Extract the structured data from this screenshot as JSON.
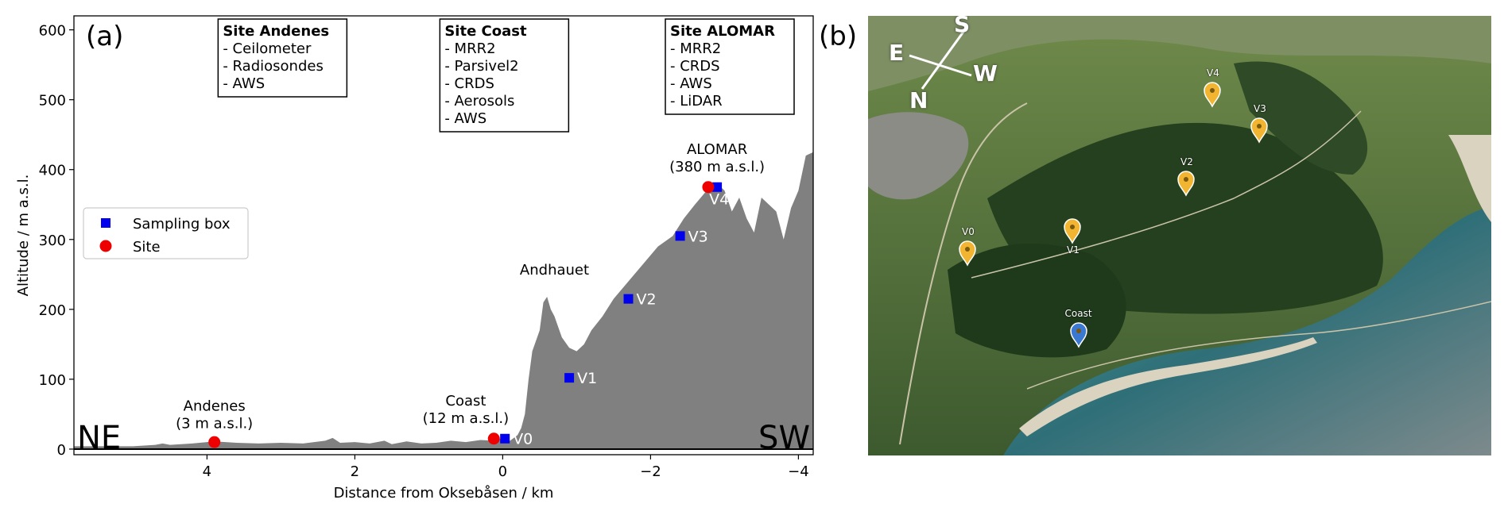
{
  "panel_a_label": "(a)",
  "panel_b_label": "(b)",
  "chart_data": {
    "type": "area",
    "xlabel": "Distance from Oksebåsen / km",
    "ylabel": "Altitude / m a.s.l.",
    "xlim": [
      5.8,
      -4.2
    ],
    "ylim": [
      -8,
      620
    ],
    "xticks": [
      4,
      2,
      0,
      -2,
      -4
    ],
    "xtick_labels": [
      "4",
      "2",
      "0",
      "−2",
      "−4"
    ],
    "yticks": [
      0,
      100,
      200,
      300,
      400,
      500,
      600
    ],
    "ytick_labels": [
      "0",
      "100",
      "200",
      "300",
      "400",
      "500",
      "600"
    ],
    "grid": false,
    "terrain_color": "#808080",
    "terrain_profile": {
      "x": [
        5.8,
        5.0,
        4.7,
        4.6,
        4.5,
        4.2,
        4.0,
        3.9,
        3.6,
        3.3,
        3.0,
        2.7,
        2.4,
        2.3,
        2.2,
        2.0,
        1.8,
        1.6,
        1.5,
        1.3,
        1.1,
        0.9,
        0.7,
        0.5,
        0.3,
        0.1,
        0.0,
        -0.1,
        -0.2,
        -0.25,
        -0.3,
        -0.35,
        -0.4,
        -0.5,
        -0.55,
        -0.6,
        -0.65,
        -0.7,
        -0.8,
        -0.9,
        -1.0,
        -1.1,
        -1.2,
        -1.35,
        -1.5,
        -1.7,
        -1.9,
        -2.1,
        -2.3,
        -2.45,
        -2.6,
        -2.8,
        -2.9,
        -3.0,
        -3.1,
        -3.2,
        -3.3,
        -3.4,
        -3.5,
        -3.6,
        -3.7,
        -3.8,
        -3.9,
        -4.0,
        -4.1,
        -4.2
      ],
      "y": [
        4,
        4,
        6,
        8,
        6,
        8,
        10,
        11,
        9,
        8,
        9,
        8,
        12,
        16,
        9,
        10,
        8,
        12,
        7,
        11,
        8,
        9,
        12,
        10,
        13,
        12,
        16,
        12,
        20,
        30,
        50,
        100,
        140,
        170,
        210,
        218,
        200,
        190,
        160,
        145,
        140,
        150,
        170,
        190,
        215,
        240,
        265,
        290,
        305,
        330,
        350,
        375,
        380,
        370,
        340,
        360,
        330,
        310,
        360,
        350,
        340,
        300,
        345,
        370,
        420,
        425
      ]
    },
    "series": [
      {
        "name": "Sampling box",
        "marker": "square",
        "color": "#0000ee",
        "points": [
          {
            "label": "V0",
            "x": -0.03,
            "y": 15
          },
          {
            "label": "V1",
            "x": -0.9,
            "y": 102
          },
          {
            "label": "V2",
            "x": -1.7,
            "y": 215
          },
          {
            "label": "V3",
            "x": -2.4,
            "y": 305
          },
          {
            "label": "V4",
            "x": -2.9,
            "y": 375
          }
        ]
      },
      {
        "name": "Site",
        "marker": "circle",
        "color": "#ee0000",
        "points": [
          {
            "x": 3.9,
            "y": 10
          },
          {
            "x": 0.12,
            "y": 15
          },
          {
            "x": -2.78,
            "y": 375
          }
        ]
      }
    ],
    "annotations": [
      {
        "line1": "Andenes",
        "line2": "(3 m a.s.l.)",
        "x": 3.9,
        "y": 28
      },
      {
        "line1": "Coast",
        "line2": "(12 m a.s.l.)",
        "x": 0.5,
        "y": 35
      },
      {
        "line1": "Andhauet",
        "line2": "",
        "x": -0.7,
        "y": 250
      },
      {
        "line1": "ALOMAR",
        "line2": "(380 m a.s.l.)",
        "x": -2.9,
        "y": 395
      }
    ],
    "direction_labels": {
      "left": "NE",
      "right": "SW"
    },
    "legend": {
      "placement": "center-left"
    },
    "site_boxes": [
      {
        "title": "Site Andenes",
        "items": [
          "- Ceilometer",
          "- Radiosondes",
          "- AWS"
        ],
        "anchor_x": 3.85
      },
      {
        "title": "Site Coast",
        "items": [
          "- MRR2",
          "- Parsivel2",
          "- CRDS",
          "- Aerosols",
          "- AWS"
        ],
        "anchor_x": 0.85
      },
      {
        "title": "Site ALOMAR",
        "items": [
          "- MRR2",
          "- CRDS",
          "- AWS",
          "- LiDAR"
        ],
        "anchor_x": -2.2
      }
    ]
  },
  "photo": {
    "compass": {
      "s": "S",
      "e": "E",
      "w": "W",
      "n": "N"
    },
    "pins": [
      {
        "label": "V0",
        "color": "#f2b531",
        "label_pos": "above"
      },
      {
        "label": "V1",
        "color": "#f2b531",
        "label_pos": "below"
      },
      {
        "label": "V2",
        "color": "#f2b531",
        "label_pos": "above"
      },
      {
        "label": "V3",
        "color": "#f2b531",
        "label_pos": "above"
      },
      {
        "label": "V4",
        "color": "#f2b531",
        "label_pos": "above"
      },
      {
        "label": "Coast",
        "color": "#3b78d0",
        "label_pos": "above"
      }
    ]
  }
}
